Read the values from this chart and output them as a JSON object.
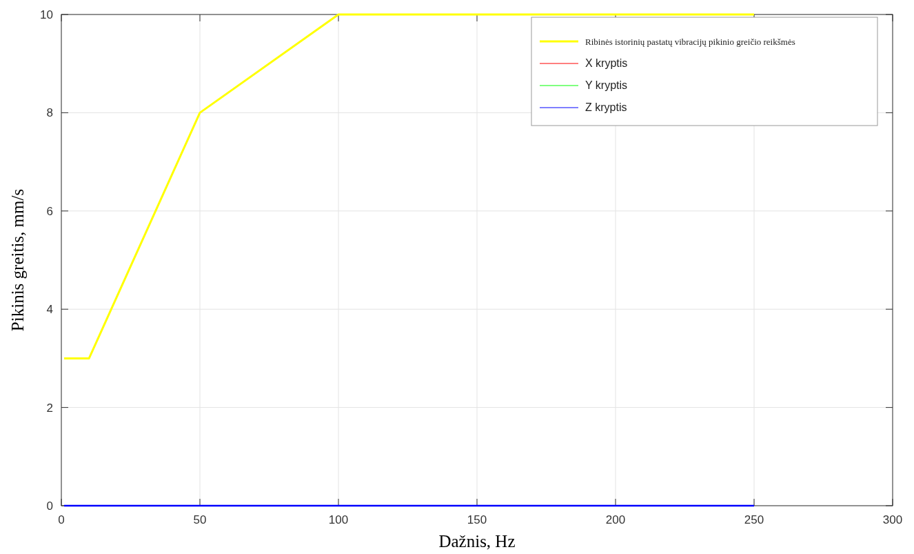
{
  "chart_data": {
    "type": "line",
    "xlabel": "Dažnis, Hz",
    "ylabel": "Pikinis greitis, mm/s",
    "series": [
      {
        "name": "Ribinės istorinių pastatų vibracijų pikinio greičio reikšmės",
        "color": "#ffff00",
        "x": [
          1,
          10,
          50,
          100,
          250
        ],
        "values": [
          3,
          3,
          8,
          10,
          10
        ]
      },
      {
        "name": "X kryptis",
        "color": "#ff0000"
      },
      {
        "name": "Y kryptis",
        "color": "#00ff00"
      },
      {
        "name": "Z kryptis",
        "color": "#0000ff",
        "x": [
          1,
          250
        ],
        "values": [
          0,
          0
        ]
      }
    ],
    "xlim": [
      0,
      300
    ],
    "xticks": [
      0,
      50,
      100,
      150,
      200,
      250,
      300
    ],
    "ylim": [
      0,
      10
    ],
    "yticks": [
      0,
      2,
      4,
      6,
      8,
      10
    ],
    "grid": true,
    "legend": "top right",
    "marker": "none",
    "line_style": "solid"
  }
}
